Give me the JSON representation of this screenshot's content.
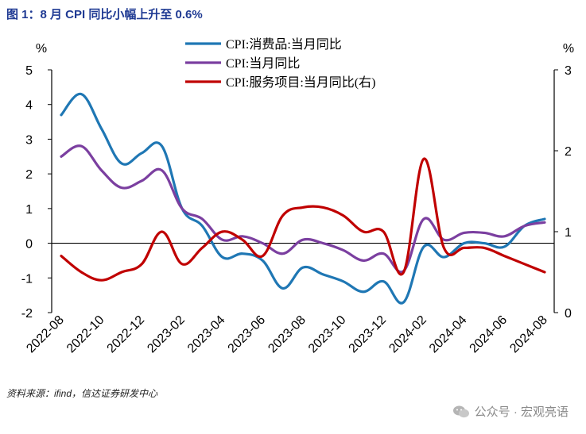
{
  "title": "图 1：8 月 CPI 同比小幅上升至 0.6%",
  "source": "资料来源：ifind，信达证券研发中心",
  "watermark": "公众号 · 宏观亮语",
  "chart_data": {
    "type": "line",
    "title": "图 1：8 月 CPI 同比小幅上升至 0.6%",
    "left_axis": {
      "unit": "%",
      "range": [
        -2,
        5
      ],
      "ticks": [
        -2,
        -1,
        0,
        1,
        2,
        3,
        4,
        5
      ]
    },
    "right_axis": {
      "unit": "%",
      "range": [
        0,
        3
      ],
      "ticks": [
        0,
        1,
        2,
        3
      ]
    },
    "x_tick_labels": [
      "2022-08",
      "2022-10",
      "2022-12",
      "2023-02",
      "2023-04",
      "2023-06",
      "2023-08",
      "2023-10",
      "2023-12",
      "2024-02",
      "2024-04",
      "2024-06",
      "2024-08"
    ],
    "x_months": [
      "2022-08",
      "2022-09",
      "2022-10",
      "2022-11",
      "2022-12",
      "2023-01",
      "2023-02",
      "2023-03",
      "2023-04",
      "2023-05",
      "2023-06",
      "2023-07",
      "2023-08",
      "2023-09",
      "2023-10",
      "2023-11",
      "2023-12",
      "2024-01",
      "2024-02",
      "2024-03",
      "2024-04",
      "2024-05",
      "2024-06",
      "2024-07",
      "2024-08"
    ],
    "series": [
      {
        "name": "CPI:消费品:当月同比",
        "axis": "left",
        "color": "#1f77b4",
        "values": [
          3.7,
          4.3,
          3.3,
          2.3,
          2.6,
          2.8,
          1.0,
          0.5,
          -0.4,
          -0.3,
          -0.5,
          -1.3,
          -0.7,
          -0.9,
          -1.1,
          -1.4,
          -1.1,
          -1.7,
          -0.1,
          -0.4,
          0.0,
          0.0,
          -0.1,
          0.5,
          0.7
        ]
      },
      {
        "name": "CPI:当月同比",
        "axis": "left",
        "color": "#7b3fa0",
        "values": [
          2.5,
          2.8,
          2.1,
          1.6,
          1.8,
          2.1,
          1.0,
          0.7,
          0.1,
          0.2,
          0.0,
          -0.3,
          0.1,
          0.0,
          -0.2,
          -0.5,
          -0.3,
          -0.8,
          0.7,
          0.1,
          0.3,
          0.3,
          0.2,
          0.5,
          0.6
        ]
      },
      {
        "name": "CPI:服务项目:当月同比(右)",
        "axis": "right",
        "color": "#c00000",
        "values": [
          0.7,
          0.5,
          0.4,
          0.5,
          0.6,
          1.0,
          0.6,
          0.8,
          1.0,
          0.9,
          0.7,
          1.2,
          1.3,
          1.3,
          1.2,
          1.0,
          1.0,
          0.5,
          1.9,
          0.8,
          0.8,
          0.8,
          0.7,
          0.6,
          0.5
        ]
      }
    ],
    "grid": false,
    "legend_position": "top-center"
  }
}
